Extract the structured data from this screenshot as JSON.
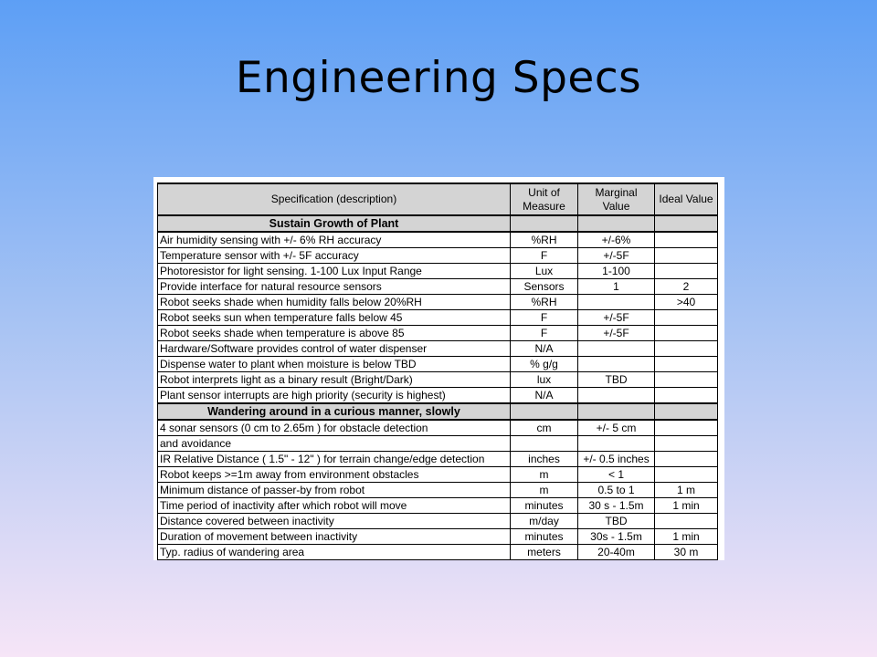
{
  "slide": {
    "title": "Engineering Specs"
  },
  "table": {
    "headers": {
      "spec": "Specification (description)",
      "unit": "Unit of Measure",
      "marginal": "Marginal Value",
      "ideal": "Ideal Value"
    },
    "sections": [
      {
        "title": "Sustain Growth of Plant",
        "rows": [
          {
            "spec": "Air humidity sensing with +/- 6% RH accuracy",
            "unit": "%RH",
            "marginal": "+/-6%",
            "ideal": ""
          },
          {
            "spec": "Temperature sensor with +/- 5F accuracy",
            "unit": "F",
            "marginal": "+/-5F",
            "ideal": ""
          },
          {
            "spec": "Photoresistor for light sensing. 1-100 Lux Input Range",
            "unit": "Lux",
            "marginal": "1-100",
            "ideal": ""
          },
          {
            "spec": "Provide interface for natural resource sensors",
            "unit": "Sensors",
            "marginal": "1",
            "ideal": "2"
          },
          {
            "spec": "Robot seeks shade when humidity falls below 20%RH",
            "unit": "%RH",
            "marginal": "",
            "ideal": ">40"
          },
          {
            "spec": "Robot seeks sun when temperature falls below 45",
            "unit": "F",
            "marginal": "+/-5F",
            "ideal": ""
          },
          {
            "spec": "Robot seeks shade when temperature is above 85",
            "unit": "F",
            "marginal": "+/-5F",
            "ideal": ""
          },
          {
            "spec": "Hardware/Software provides control of water dispenser",
            "unit": "N/A",
            "marginal": "",
            "ideal": ""
          },
          {
            "spec": "Dispense water to plant when moisture is below TBD",
            "unit": "% g/g",
            "marginal": "",
            "ideal": ""
          },
          {
            "spec": "Robot interprets light as a binary result (Bright/Dark)",
            "unit": "lux",
            "marginal": "TBD",
            "ideal": ""
          },
          {
            "spec": "Plant sensor interrupts are high priority (security is highest)",
            "unit": "N/A",
            "marginal": "",
            "ideal": ""
          }
        ]
      },
      {
        "title": "Wandering around in a curious manner, slowly",
        "rows": [
          {
            "spec": "4 sonar sensors (0 cm to 2.65m ) for obstacle detection",
            "unit": "cm",
            "marginal": "+/- 5 cm",
            "ideal": ""
          },
          {
            "spec": "and avoidance",
            "unit": "",
            "marginal": "",
            "ideal": ""
          },
          {
            "spec": "IR Relative Distance ( 1.5\" - 12\" ) for terrain change/edge detection",
            "unit": "inches",
            "marginal": "+/- 0.5 inches",
            "ideal": ""
          },
          {
            "spec": "Robot keeps >=1m away from environment obstacles",
            "unit": "m",
            "marginal": "< 1",
            "ideal": ""
          },
          {
            "spec": "Minimum distance of passer-by from robot",
            "unit": "m",
            "marginal": "0.5 to 1",
            "ideal": "1 m"
          },
          {
            "spec": "Time period of inactivity after which robot will move",
            "unit": "minutes",
            "marginal": "30 s - 1.5m",
            "ideal": "1 min"
          },
          {
            "spec": "Distance covered between inactivity",
            "unit": "m/day",
            "marginal": "TBD",
            "ideal": ""
          },
          {
            "spec": "Duration of movement between inactivity",
            "unit": "minutes",
            "marginal": "30s - 1.5m",
            "ideal": "1 min"
          },
          {
            "spec": "Typ. radius of wandering area",
            "unit": "meters",
            "marginal": "20-40m",
            "ideal": "30 m"
          }
        ]
      }
    ]
  }
}
